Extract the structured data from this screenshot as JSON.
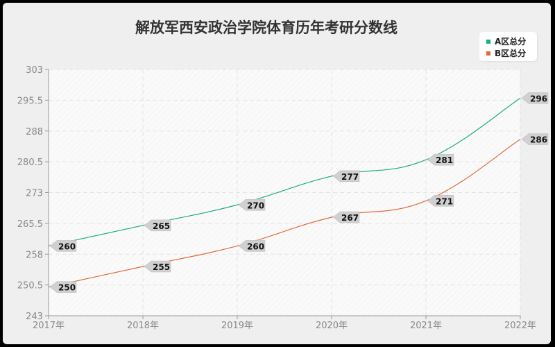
{
  "title": "解放军西安政治学院体育历年考研分数线",
  "legend": [
    {
      "label": "A区总分",
      "color": "#1aaf7e"
    },
    {
      "label": "B区总分",
      "color": "#e06a3b"
    }
  ],
  "chart_data": {
    "type": "line",
    "title": "解放军西安政治学院体育历年考研分数线",
    "xlabel": "",
    "ylabel": "",
    "categories": [
      "2017年",
      "2018年",
      "2019年",
      "2020年",
      "2021年",
      "2022年"
    ],
    "series": [
      {
        "name": "A区总分",
        "color": "#1aaf7e",
        "values": [
          260,
          265,
          270,
          277,
          281,
          296
        ]
      },
      {
        "name": "B区总分",
        "color": "#e06a3b",
        "values": [
          250,
          255,
          260,
          267,
          271,
          286
        ]
      }
    ],
    "yticks": [
      "243",
      "250.5",
      "258",
      "265.5",
      "273",
      "280.5",
      "288",
      "295.5",
      "303"
    ],
    "ylim": [
      243,
      303
    ],
    "grid": true,
    "legend_position": "top-right",
    "smooth": true
  }
}
